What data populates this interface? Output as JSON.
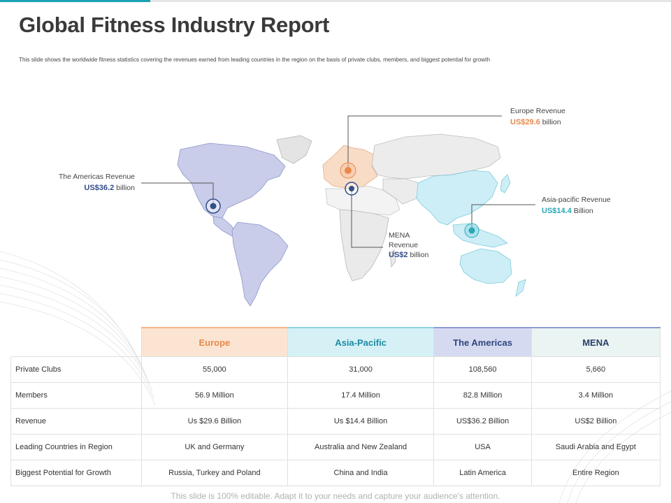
{
  "title": "Global Fitness Industry Report",
  "subtitle": "This slide shows the worldwide fitness statistics covering the revenues earned from leading countries in the region on the basis of  private clubs, members, and biggest potential for growth",
  "colors": {
    "europe": "#e8894b",
    "asia_pacific": "#2aa7b8",
    "americas": "#344e8a",
    "mena": "#344e8a",
    "accent": "#1aa3b5"
  },
  "callouts": {
    "europe": {
      "label": "Europe Revenue",
      "value": "US$29.6",
      "unit": "billion"
    },
    "americas": {
      "label": "The Americas Revenue",
      "value": "US$36.2",
      "unit": "billion"
    },
    "asia_pacific": {
      "label": "Asia-pacific Revenue",
      "value": "US$14.4",
      "unit": "Billion"
    },
    "mena": {
      "label1": "MENA",
      "label2": "Revenue",
      "value": "US$2",
      "unit": "billion"
    }
  },
  "table": {
    "headers": [
      "Europe",
      "Asia-Pacific",
      "The Americas",
      "MENA"
    ],
    "rows": [
      {
        "label": "Private Clubs",
        "cells": [
          "55,000",
          "31,000",
          "108,560",
          "5,660"
        ]
      },
      {
        "label": "Members",
        "cells": [
          "56.9 Million",
          "17.4 Million",
          "82.8 Million",
          "3.4 Million"
        ]
      },
      {
        "label": "Revenue",
        "cells": [
          "Us $29.6 Billion",
          "Us $14.4 Billion",
          "US$36.2 Billion",
          "US$2 Billion"
        ]
      },
      {
        "label": "Leading Countries in Region",
        "cells": [
          "UK and Germany",
          "Australia and New Zealand",
          "USA",
          "Saudi Arabia and Egypt"
        ]
      },
      {
        "label": "Biggest Potential for Growth",
        "cells": [
          "Russia, Turkey and Poland",
          "China and India",
          "Latin America",
          "Entire Region"
        ]
      }
    ]
  },
  "footer": "This slide is 100% editable. Adapt it to your needs and capture your audience's attention."
}
